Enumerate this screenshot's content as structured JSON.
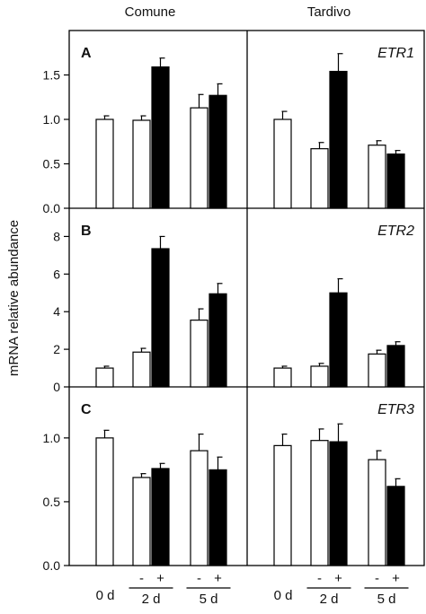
{
  "column_titles": [
    "Comune",
    "Tardivo"
  ],
  "ylabel": "mRNA relative abundance",
  "x_groups": [
    {
      "label": "0 d",
      "sub": []
    },
    {
      "label": "2 d",
      "sub": [
        "-",
        "+"
      ]
    },
    {
      "label": "5 d",
      "sub": [
        "-",
        "+"
      ]
    }
  ],
  "legend_colors": {
    "minus": "#ffffff",
    "plus": "#000000"
  },
  "chart_data": [
    {
      "type": "bar",
      "panel": "A",
      "cultivar": "Comune",
      "ylim": [
        0,
        2.0
      ],
      "yticks": [
        "0.0",
        "0.5",
        "1.0",
        "1.5"
      ],
      "categories": [
        "0 d",
        "2 d -",
        "2 d +",
        "5 d -",
        "5 d +"
      ],
      "values": [
        1.0,
        0.99,
        1.59,
        1.13,
        1.27
      ],
      "errors": [
        0.04,
        0.05,
        0.1,
        0.15,
        0.13
      ],
      "fill": [
        "white",
        "white",
        "black",
        "white",
        "black"
      ]
    },
    {
      "type": "bar",
      "panel": "A",
      "cultivar": "Tardivo",
      "gene": "ETR1",
      "ylim": [
        0,
        2.0
      ],
      "categories": [
        "0 d",
        "2 d -",
        "2 d +",
        "5 d -",
        "5 d +"
      ],
      "values": [
        1.0,
        0.67,
        1.54,
        0.71,
        0.61
      ],
      "errors": [
        0.09,
        0.07,
        0.2,
        0.05,
        0.04
      ],
      "fill": [
        "white",
        "white",
        "black",
        "white",
        "black"
      ]
    },
    {
      "type": "bar",
      "panel": "B",
      "cultivar": "Comune",
      "ylim": [
        0,
        9.5
      ],
      "yticks": [
        "0",
        "2",
        "4",
        "6",
        "8"
      ],
      "categories": [
        "0 d",
        "2 d -",
        "2 d +",
        "5 d -",
        "5 d +"
      ],
      "values": [
        1.0,
        1.85,
        7.35,
        3.55,
        4.95
      ],
      "errors": [
        0.1,
        0.2,
        0.65,
        0.6,
        0.55
      ],
      "fill": [
        "white",
        "white",
        "black",
        "white",
        "black"
      ]
    },
    {
      "type": "bar",
      "panel": "B",
      "cultivar": "Tardivo",
      "gene": "ETR2",
      "ylim": [
        0,
        9.5
      ],
      "categories": [
        "0 d",
        "2 d -",
        "2 d +",
        "5 d -",
        "5 d +"
      ],
      "values": [
        1.0,
        1.1,
        5.0,
        1.75,
        2.2
      ],
      "errors": [
        0.1,
        0.15,
        0.75,
        0.2,
        0.2
      ],
      "fill": [
        "white",
        "white",
        "black",
        "white",
        "black"
      ]
    },
    {
      "type": "bar",
      "panel": "C",
      "cultivar": "Comune",
      "ylim": [
        0,
        1.4
      ],
      "yticks": [
        "0.0",
        "0.5",
        "1.0"
      ],
      "categories": [
        "0 d",
        "2 d -",
        "2 d +",
        "5 d -",
        "5 d +"
      ],
      "values": [
        1.0,
        0.69,
        0.76,
        0.9,
        0.75
      ],
      "errors": [
        0.06,
        0.03,
        0.04,
        0.13,
        0.1
      ],
      "fill": [
        "white",
        "white",
        "black",
        "white",
        "black"
      ]
    },
    {
      "type": "bar",
      "panel": "C",
      "cultivar": "Tardivo",
      "gene": "ETR3",
      "ylim": [
        0,
        1.4
      ],
      "categories": [
        "0 d",
        "2 d -",
        "2 d +",
        "5 d -",
        "5 d +"
      ],
      "values": [
        0.94,
        0.98,
        0.97,
        0.83,
        0.62
      ],
      "errors": [
        0.09,
        0.09,
        0.14,
        0.07,
        0.06
      ],
      "fill": [
        "white",
        "white",
        "black",
        "white",
        "black"
      ]
    }
  ]
}
